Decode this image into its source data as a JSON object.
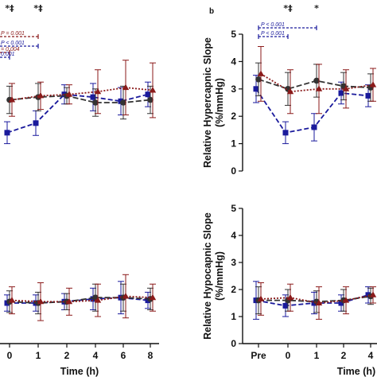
{
  "chart_data": [
    {
      "panel": "a (partial, cropped)",
      "type": "line",
      "categories": [
        "0",
        "1",
        "2",
        "4",
        "6",
        "8"
      ],
      "xlabel": "Time (h)",
      "ylabel": "",
      "ylim": [
        0,
        5
      ],
      "series": [
        {
          "color": "#1a1a9c",
          "marker": "square",
          "values": [
            1.4,
            1.75,
            2.8,
            2.7,
            2.55,
            2.8
          ],
          "errors": [
            0.4,
            0.45,
            0.35,
            0.5,
            0.5,
            0.45
          ]
        },
        {
          "color": "#333333",
          "marker": "circle",
          "values": [
            2.6,
            2.7,
            2.75,
            2.5,
            2.5,
            2.6
          ],
          "errors": [
            0.5,
            0.5,
            0.3,
            0.5,
            0.6,
            0.5
          ]
        },
        {
          "color": "#8b1a1a",
          "marker": "triangle",
          "values": [
            2.6,
            2.75,
            2.8,
            2.9,
            3.05,
            2.95
          ],
          "errors": [
            0.6,
            0.5,
            0.35,
            0.8,
            1.0,
            1.0
          ]
        }
      ],
      "annotations": [
        {
          "text": "*‡",
          "at": "0"
        },
        {
          "text": "*‡",
          "at": "1"
        },
        {
          "text": "P = 0.001",
          "color": "#8b1a1a"
        },
        {
          "text": "P < 0.001",
          "color": "#1a1a9c"
        },
        {
          "text": "= 0.004",
          "color": "#8b1a1a"
        },
        {
          "text": "0.001",
          "color": "#1a1a9c"
        }
      ]
    },
    {
      "panel": "b",
      "type": "line",
      "categories": [
        "Pre",
        "0",
        "1",
        "2",
        "4"
      ],
      "xlabel": "Time (h)",
      "ylabel": "Relative Hypercapnic Slope (%/mmHg)",
      "ylim": [
        0,
        5
      ],
      "series": [
        {
          "color": "#1a1a9c",
          "marker": "square",
          "values": [
            3.0,
            1.4,
            1.6,
            2.85,
            2.75
          ],
          "errors": [
            0.5,
            0.4,
            0.5,
            0.4,
            0.4
          ]
        },
        {
          "color": "#333333",
          "marker": "circle",
          "values": [
            3.35,
            3.0,
            3.3,
            3.1,
            3.05
          ],
          "errors": [
            0.6,
            0.6,
            0.6,
            0.5,
            0.5
          ]
        },
        {
          "color": "#8b1a1a",
          "marker": "triangle",
          "values": [
            3.55,
            2.9,
            3.0,
            3.0,
            3.15
          ],
          "errors": [
            1.0,
            0.8,
            0.9,
            0.7,
            0.6
          ]
        }
      ],
      "annotations": [
        {
          "text": "*‡",
          "at": "0"
        },
        {
          "text": "*",
          "at": "1"
        },
        {
          "text": "P < 0.001",
          "color": "#1a1a9c"
        },
        {
          "text": "P < 0.001",
          "color": "#1a1a9c"
        }
      ]
    },
    {
      "panel": "c (partial, cropped)",
      "type": "line",
      "categories": [
        "0",
        "1",
        "2",
        "4",
        "6",
        "8"
      ],
      "xlabel": "Time (h)",
      "ylabel": "",
      "ylim": [
        0,
        5
      ],
      "series": [
        {
          "color": "#1a1a9c",
          "marker": "square",
          "values": [
            1.5,
            1.5,
            1.55,
            1.65,
            1.7,
            1.6
          ],
          "errors": [
            0.3,
            0.3,
            0.3,
            0.4,
            0.6,
            0.3
          ]
        },
        {
          "color": "#333333",
          "marker": "circle",
          "values": [
            1.55,
            1.5,
            1.55,
            1.7,
            1.7,
            1.65
          ],
          "errors": [
            0.4,
            0.4,
            0.3,
            0.5,
            0.5,
            0.4
          ]
        },
        {
          "color": "#8b1a1a",
          "marker": "triangle",
          "values": [
            1.6,
            1.55,
            1.55,
            1.6,
            1.75,
            1.7
          ],
          "errors": [
            0.5,
            0.7,
            0.5,
            0.6,
            0.8,
            0.5
          ]
        }
      ]
    },
    {
      "panel": "d",
      "type": "line",
      "categories": [
        "Pre",
        "0",
        "1",
        "2",
        "4"
      ],
      "xlabel": "Time (h)",
      "ylabel": "Relative Hypocapnic Slope (%/mmHg)",
      "ylim": [
        0,
        5
      ],
      "series": [
        {
          "color": "#1a1a9c",
          "marker": "square",
          "values": [
            1.6,
            1.4,
            1.5,
            1.5,
            1.8
          ],
          "errors": [
            0.7,
            0.4,
            0.4,
            0.3,
            0.3
          ]
        },
        {
          "color": "#333333",
          "marker": "circle",
          "values": [
            1.6,
            1.6,
            1.55,
            1.6,
            1.75
          ],
          "errors": [
            0.5,
            0.4,
            0.4,
            0.4,
            0.3
          ]
        },
        {
          "color": "#8b1a1a",
          "marker": "triangle",
          "values": [
            1.65,
            1.7,
            1.5,
            1.6,
            1.8
          ],
          "errors": [
            0.6,
            0.5,
            0.6,
            0.5,
            0.3
          ]
        }
      ]
    }
  ]
}
